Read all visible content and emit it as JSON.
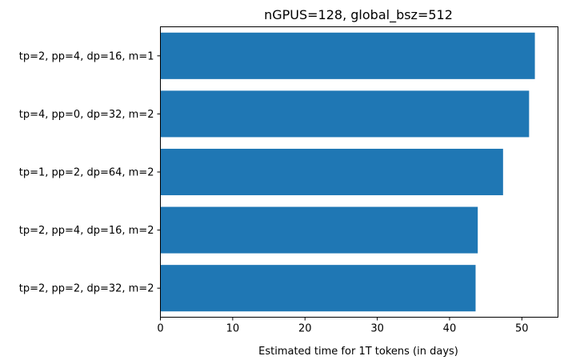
{
  "chart_data": {
    "type": "bar",
    "orientation": "horizontal",
    "title": "nGPUS=128, global_bsz=512",
    "xlabel": "Estimated time for 1T tokens (in days)",
    "ylabel": "",
    "xlim": [
      0,
      55
    ],
    "xticks": [
      0,
      10,
      20,
      30,
      40,
      50
    ],
    "categories": [
      "tp=2, pp=2, dp=32, m=2",
      "tp=2, pp=4, dp=16, m=2",
      "tp=1, pp=2, dp=64, m=2",
      "tp=4, pp=0, dp=32, m=2",
      "tp=2, pp=4, dp=16, m=1"
    ],
    "values": [
      43.6,
      43.9,
      47.4,
      51.0,
      51.8
    ],
    "bar_color": "#1f77b4",
    "grid": false
  }
}
